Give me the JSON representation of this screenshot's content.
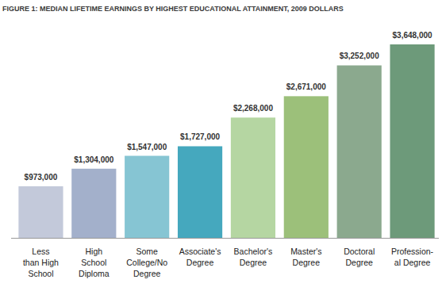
{
  "chart_data": {
    "type": "bar",
    "title": "FIGURE 1: MEDIAN LIFETIME EARNINGS BY HIGHEST EDUCATIONAL ATTAINMENT, 2009 DOLLARS",
    "categories": [
      "Less\nthan High\nSchool",
      "High\nSchool\nDiploma",
      "Some\nCollege/No\nDegree",
      "Associate's\nDegree",
      "Bachelor's\nDegree",
      "Master's\nDegree",
      "Doctoral\nDegree",
      "Profession-\nal Degree"
    ],
    "values": [
      973000,
      1304000,
      1547000,
      1727000,
      2268000,
      2671000,
      3252000,
      3648000
    ],
    "value_labels": [
      "$973,000",
      "$1,304,000",
      "$1,547,000",
      "$1,727,000",
      "$2,268,000",
      "$2,671,000",
      "$3,252,000",
      "$3,648,000"
    ],
    "colors": [
      "#c3c9da",
      "#a3b0cb",
      "#86c5d3",
      "#45a8be",
      "#b5d6a2",
      "#9cc07a",
      "#8ba98e",
      "#6d9a7a"
    ],
    "data_labels": true,
    "tick_labels": false
  }
}
